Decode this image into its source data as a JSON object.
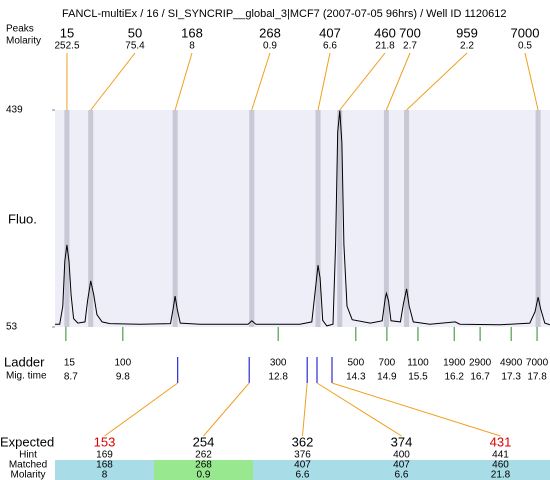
{
  "header": {
    "title": "FANCL-multiEx / 16 / SI_SYNCRIP__global_3|MCF7 (2007-07-05 96hrs) / Well ID 1120612"
  },
  "peaks": {
    "labels": [
      "Peaks",
      "Molarity"
    ],
    "sizes": [
      15,
      50,
      168,
      268,
      407,
      460,
      700,
      959,
      7000
    ],
    "molarity": [
      252.5,
      75.4,
      8,
      0.9,
      6.6,
      21.8,
      2.7,
      2.2,
      0.5
    ],
    "times": [
      8.72,
      9.18,
      10.81,
      12.29,
      13.57,
      13.99,
      14.89,
      15.28,
      17.82
    ],
    "band_color": "#c8c8d6",
    "connector_color": "#f0a020"
  },
  "chart_data": {
    "type": "line",
    "y_label": "Fluo.",
    "ylim": [
      53,
      439
    ],
    "yticks": [
      53,
      439
    ],
    "xlim": [
      8.49,
      18.05
    ],
    "color": "#000000",
    "background": "#eeeef8",
    "x": [
      8.49,
      8.58,
      8.64,
      8.68,
      8.72,
      8.76,
      8.8,
      8.85,
      8.93,
      9.07,
      9.12,
      9.18,
      9.24,
      9.3,
      9.4,
      9.55,
      10.13,
      10.72,
      10.77,
      10.81,
      10.85,
      10.91,
      11.29,
      12.22,
      12.29,
      12.37,
      13.22,
      13.45,
      13.53,
      13.57,
      13.61,
      13.66,
      13.74,
      13.86,
      13.91,
      13.95,
      13.99,
      14.03,
      14.07,
      14.13,
      14.23,
      14.58,
      14.81,
      14.87,
      14.89,
      14.93,
      14.98,
      15.16,
      15.22,
      15.28,
      15.33,
      15.41,
      15.73,
      16.22,
      16.31,
      17.09,
      17.66,
      17.76,
      17.82,
      17.87,
      17.95,
      18.05
    ],
    "values": [
      58,
      58,
      90,
      170,
      199,
      170,
      110,
      68,
      60,
      62,
      100,
      135,
      110,
      75,
      62,
      59,
      58,
      59,
      85,
      108,
      85,
      60,
      58,
      58,
      64,
      58,
      58,
      62,
      130,
      163,
      140,
      65,
      55,
      58,
      200,
      400,
      438,
      380,
      200,
      90,
      66,
      60,
      64,
      105,
      113,
      100,
      64,
      62,
      95,
      121,
      90,
      62,
      58,
      62,
      58,
      57,
      60,
      80,
      106,
      85,
      60,
      57
    ]
  },
  "ladder": {
    "labels": [
      "Ladder",
      "Mig. time"
    ],
    "sizes": [
      15,
      100,
      300,
      500,
      700,
      1100,
      1900,
      2900,
      4900,
      7000
    ],
    "times": [
      8.7,
      9.8,
      12.8,
      14.3,
      14.9,
      15.5,
      16.2,
      16.7,
      17.3,
      17.8
    ],
    "color": "#2a8a2a"
  },
  "expected": {
    "labels": [
      "Expected",
      "Hint",
      "Matched",
      "Molarity"
    ],
    "expected": [
      153,
      254,
      362,
      374,
      431
    ],
    "expected_colors": [
      "#e00000",
      "#000000",
      "#000000",
      "#000000",
      "#e00000"
    ],
    "hint": [
      169,
      262,
      376,
      400,
      441
    ],
    "matched": [
      168,
      268,
      407,
      407,
      460
    ],
    "molarity": [
      8,
      0.9,
      6.6,
      6.6,
      21.8
    ],
    "times": [
      10.86,
      12.24,
      13.36,
      13.55,
      13.84
    ],
    "cell_colors": [
      "#a8dce6",
      "#98e890",
      "#a8dce6",
      "#a8dce6",
      "#a8dce6"
    ],
    "marker_color": "#0000cc",
    "connector_color": "#f0a020"
  }
}
